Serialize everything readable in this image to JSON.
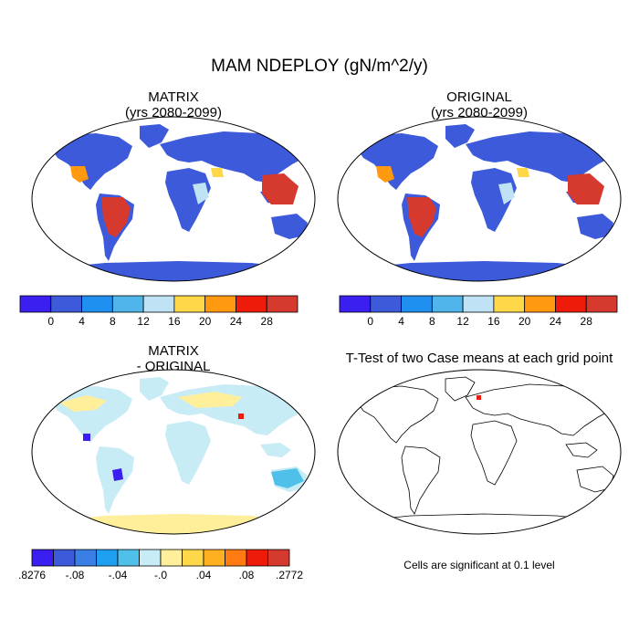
{
  "figure": {
    "title": "MAM NDEPLOY (gN/m^2/y)",
    "note": "Cells are significant at 0.1 level"
  },
  "chart_data": [
    {
      "type": "heatmap",
      "title": "MATRIX",
      "subtitle": "(yrs 2080-2099)",
      "colorbar": {
        "labels": [
          "0",
          "4",
          "8",
          "12",
          "16",
          "20",
          "24",
          "28"
        ],
        "colors": [
          "#3a1ff0",
          "#3c5ad9",
          "#1f8ff0",
          "#4fb5ea",
          "#bfe3f4",
          "#ffd84a",
          "#ff9a10",
          "#ee1a0a",
          "#d63a2e"
        ],
        "levels": [
          0,
          4,
          8,
          12,
          16,
          20,
          24,
          28
        ]
      }
    },
    {
      "type": "heatmap",
      "title": "ORIGINAL",
      "subtitle": "(yrs 2080-2099)",
      "colorbar": {
        "labels": [
          "0",
          "4",
          "8",
          "12",
          "16",
          "20",
          "24",
          "28"
        ],
        "colors": [
          "#3a1ff0",
          "#3c5ad9",
          "#1f8ff0",
          "#4fb5ea",
          "#bfe3f4",
          "#ffd84a",
          "#ff9a10",
          "#ee1a0a",
          "#d63a2e"
        ],
        "levels": [
          0,
          4,
          8,
          12,
          16,
          20,
          24,
          28
        ]
      }
    },
    {
      "type": "heatmap",
      "title": "MATRIX",
      "subtitle": "- ORIGINAL",
      "colorbar": {
        "labels": [
          ".8276",
          "-.08",
          "-.04",
          "-.0",
          ".04",
          ".08",
          ".2772"
        ],
        "colors": [
          "#3a1ff0",
          "#3c5ad9",
          "#3a7fe6",
          "#1f9ff0",
          "#4fc0ea",
          "#c8ecf6",
          "#ffef9a",
          "#ffd84a",
          "#ffb020",
          "#ff7a10",
          "#ee1a0a",
          "#d63a2e"
        ]
      }
    },
    {
      "type": "heatmap",
      "title": "T-Test of two Case means at each grid point"
    }
  ]
}
